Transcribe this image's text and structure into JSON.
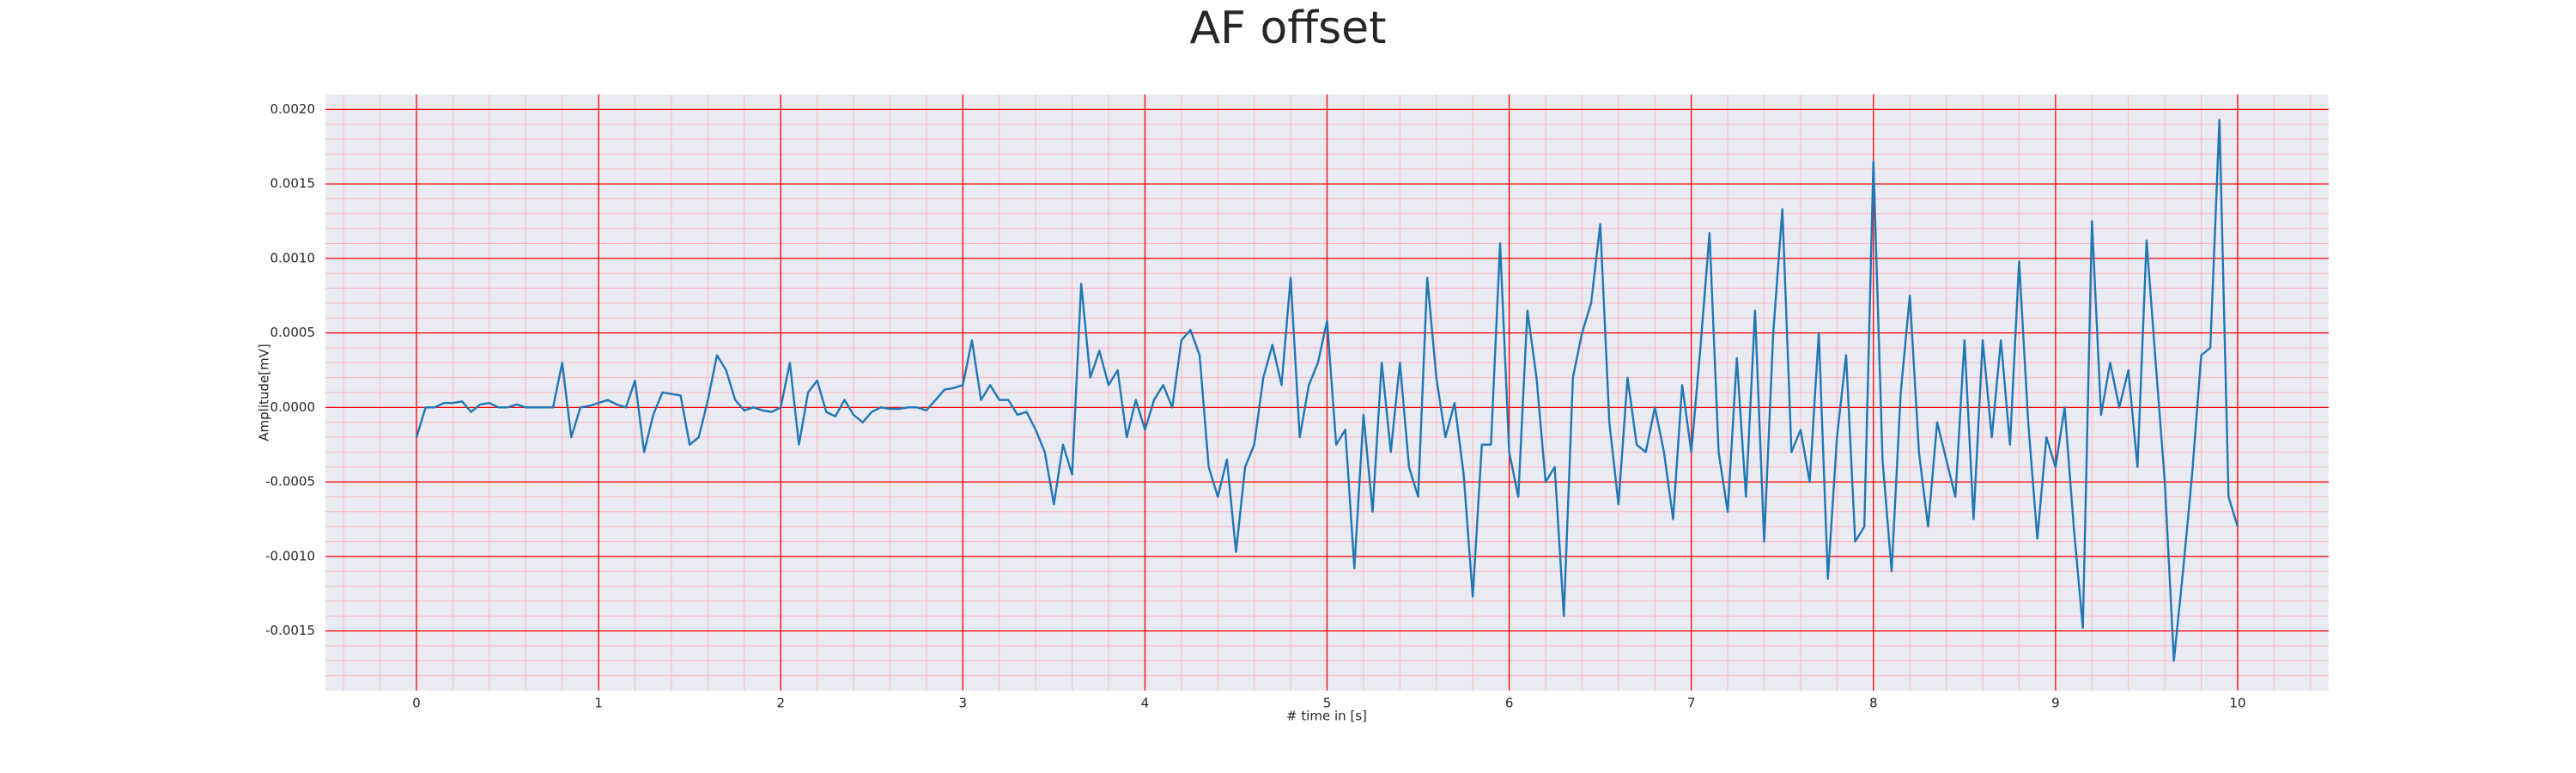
{
  "chart_data": {
    "type": "line",
    "title": "AF offset",
    "xlabel": "# time in [s]",
    "ylabel": "Amplitude[mV]",
    "x": [
      0,
      0.05,
      0.1,
      0.15,
      0.2,
      0.25,
      0.3,
      0.35,
      0.4,
      0.45,
      0.5,
      0.55,
      0.6,
      0.65,
      0.7,
      0.75,
      0.8,
      0.85,
      0.9,
      0.95,
      1,
      1.05,
      1.1,
      1.15,
      1.2,
      1.25,
      1.3,
      1.35,
      1.4,
      1.45,
      1.5,
      1.55,
      1.6,
      1.65,
      1.7,
      1.75,
      1.8,
      1.85,
      1.9,
      1.95,
      2,
      2.05,
      2.1,
      2.15,
      2.2,
      2.25,
      2.3,
      2.35,
      2.4,
      2.45,
      2.5,
      2.55,
      2.6,
      2.65,
      2.7,
      2.75,
      2.8,
      2.85,
      2.9,
      2.95,
      3,
      3.05,
      3.1,
      3.15,
      3.2,
      3.25,
      3.3,
      3.35,
      3.4,
      3.45,
      3.5,
      3.55,
      3.6,
      3.65,
      3.7,
      3.75,
      3.8,
      3.85,
      3.9,
      3.95,
      4,
      4.05,
      4.1,
      4.15,
      4.2,
      4.25,
      4.3,
      4.35,
      4.4,
      4.45,
      4.5,
      4.55,
      4.6,
      4.65,
      4.7,
      4.75,
      4.8,
      4.85,
      4.9,
      4.95,
      5,
      5.05,
      5.1,
      5.15,
      5.2,
      5.25,
      5.3,
      5.35,
      5.4,
      5.45,
      5.5,
      5.55,
      5.6,
      5.65,
      5.7,
      5.75,
      5.8,
      5.85,
      5.9,
      5.95,
      6,
      6.05,
      6.1,
      6.15,
      6.2,
      6.25,
      6.3,
      6.35,
      6.4,
      6.45,
      6.5,
      6.55,
      6.6,
      6.65,
      6.7,
      6.75,
      6.8,
      6.85,
      6.9,
      6.95,
      7,
      7.05,
      7.1,
      7.15,
      7.2,
      7.25,
      7.3,
      7.35,
      7.4,
      7.45,
      7.5,
      7.55,
      7.6,
      7.65,
      7.7,
      7.75,
      7.8,
      7.85,
      7.9,
      7.95,
      8,
      8.05,
      8.1,
      8.15,
      8.2,
      8.25,
      8.3,
      8.35,
      8.4,
      8.45,
      8.5,
      8.55,
      8.6,
      8.65,
      8.7,
      8.75,
      8.8,
      8.85,
      8.9,
      8.95,
      9,
      9.05,
      9.1,
      9.15,
      9.2,
      9.25,
      9.3,
      9.35,
      9.4,
      9.45,
      9.5,
      9.55,
      9.6,
      9.65,
      9.7,
      9.75,
      9.8,
      9.85,
      9.9,
      9.95,
      10
    ],
    "series": [
      {
        "name": "AF offset",
        "color": "#1f77b4",
        "values": [
          -0.0002,
          0,
          0,
          3e-05,
          3e-05,
          4e-05,
          -3e-05,
          2e-05,
          3e-05,
          0,
          0,
          2e-05,
          0,
          0,
          0,
          0,
          0.0003,
          -0.0002,
          0,
          1e-05,
          3e-05,
          5e-05,
          2e-05,
          0,
          0.00018,
          -0.0003,
          -5e-05,
          0.0001,
          9e-05,
          8e-05,
          -0.00025,
          -0.0002,
          5e-05,
          0.00035,
          0.00025,
          5e-05,
          -2e-05,
          0,
          -2e-05,
          -3e-05,
          0,
          0.0003,
          -0.00025,
          0.0001,
          0.00018,
          -3e-05,
          -6e-05,
          5e-05,
          -5e-05,
          -0.0001,
          -3e-05,
          0,
          -1e-05,
          -1e-05,
          0,
          0,
          -2e-05,
          5e-05,
          0.00012,
          0.00013,
          0.00015,
          0.00045,
          5e-05,
          0.00015,
          5e-05,
          5e-05,
          -5e-05,
          -3e-05,
          -0.00015,
          -0.0003,
          -0.00065,
          -0.00025,
          -0.00045,
          0.00083,
          0.0002,
          0.00038,
          0.00015,
          0.00025,
          -0.0002,
          5e-05,
          -0.00015,
          5e-05,
          0.00015,
          0,
          0.00045,
          0.00052,
          0.00035,
          -0.0004,
          -0.0006,
          -0.00035,
          -0.00097,
          -0.0004,
          -0.00025,
          0.0002,
          0.00042,
          0.00015,
          0.00087,
          -0.0002,
          0.00015,
          0.0003,
          0.00058,
          -0.00025,
          -0.00015,
          -0.00108,
          -5e-05,
          -0.0007,
          0.0003,
          -0.0003,
          0.0003,
          -0.0004,
          -0.0006,
          0.00087,
          0.0002,
          -0.0002,
          3e-05,
          -0.00045,
          -0.00127,
          -0.00025,
          -0.00025,
          0.0011,
          -0.0003,
          -0.0006,
          0.00065,
          0.0002,
          -0.0005,
          -0.0004,
          -0.0014,
          0.0002,
          0.0005,
          0.0007,
          0.00123,
          -0.0001,
          -0.00065,
          0.0002,
          -0.00025,
          -0.0003,
          0,
          -0.0003,
          -0.00075,
          0.00015,
          -0.0003,
          0.0004,
          0.00117,
          -0.0003,
          -0.0007,
          0.00033,
          -0.0006,
          0.00065,
          -0.0009,
          0.0005,
          0.00133,
          -0.0003,
          -0.00015,
          -0.0005,
          0.0005,
          -0.00115,
          -0.0002,
          0.00035,
          -0.0009,
          -0.0008,
          0.00165,
          -0.00035,
          -0.0011,
          0.0001,
          0.00075,
          -0.0003,
          -0.0008,
          -0.0001,
          -0.00035,
          -0.0006,
          0.00045,
          -0.00075,
          0.00045,
          -0.0002,
          0.00045,
          -0.00025,
          0.00098,
          -0.0001,
          -0.00088,
          -0.0002,
          -0.0004,
          0,
          -0.0008,
          -0.00148,
          0.00125,
          -5e-05,
          0.0003,
          0,
          0.00025,
          -0.0004,
          0.00112,
          0.0003,
          -0.0005,
          -0.0017,
          -0.0011,
          -0.00045,
          0.00035,
          0.0004,
          0.00193,
          -0.0006,
          -0.0008
        ]
      }
    ],
    "xlim": [
      -0.5,
      10.5
    ],
    "xticks": [
      0,
      1,
      2,
      3,
      4,
      5,
      6,
      7,
      8,
      9,
      10
    ],
    "ylim": [
      -0.0019,
      0.0021
    ],
    "yticks": [
      {
        "value": -0.0015,
        "label": "-0.0015"
      },
      {
        "value": -0.001,
        "label": "-0.0010"
      },
      {
        "value": -0.0005,
        "label": "-0.0005"
      },
      {
        "value": 0,
        "label": "0.0000"
      },
      {
        "value": 0.0005,
        "label": "0.0005"
      },
      {
        "value": 0.001,
        "label": "0.0010"
      },
      {
        "value": 0.0015,
        "label": "0.0015"
      },
      {
        "value": 0.002,
        "label": "0.0020"
      }
    ],
    "grid": true,
    "grid_color": "#ff0000",
    "minor_grid_color": "#ffb6c1",
    "minor_per_major": 5,
    "background": "#eaeaf2"
  }
}
